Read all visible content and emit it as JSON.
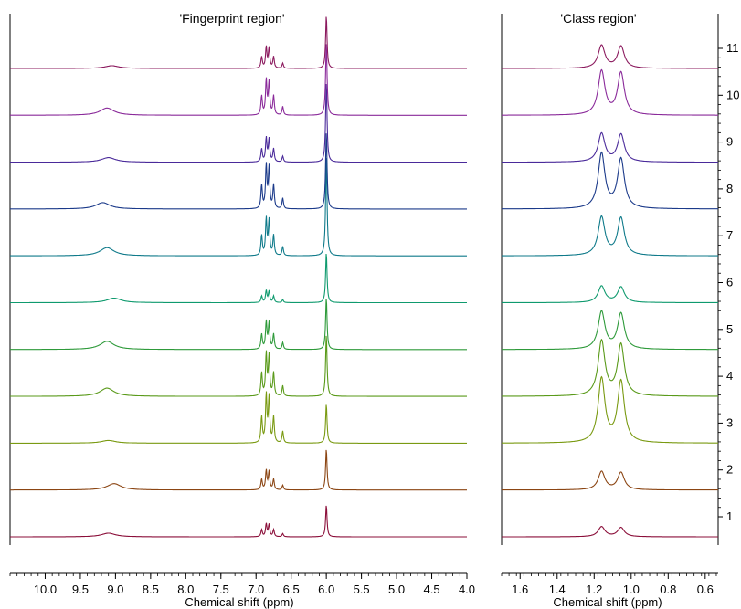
{
  "chart_data": [
    {
      "type": "line",
      "title": "'Fingerprint region'",
      "xlabel": "Chemical shift (ppm)",
      "xlim": [
        10.5,
        4.0
      ],
      "x_reversed": true,
      "xticks": [
        "10.0",
        "9.5",
        "9.0",
        "8.5",
        "8.0",
        "7.5",
        "7.0",
        "6.5",
        "6.0",
        "5.5",
        "5.0",
        "4.5",
        "4.0"
      ],
      "xtick_values": [
        10.0,
        9.5,
        9.0,
        8.5,
        8.0,
        7.5,
        7.0,
        6.5,
        6.0,
        5.5,
        5.0,
        4.5,
        4.0
      ],
      "peaks": [
        {
          "ppm": 9.1,
          "label": "broad hump"
        },
        {
          "ppm": 6.85,
          "label": "aromatic multiplet"
        },
        {
          "ppm": 6.0,
          "label": "sharp singlet"
        }
      ]
    },
    {
      "type": "line",
      "title": "'Class region'",
      "xlabel": "Chemical shift (ppm)",
      "xlim": [
        1.7,
        0.53
      ],
      "x_reversed": true,
      "xticks": [
        "1.6",
        "1.4",
        "1.2",
        "1.0",
        "0.8",
        "0.6"
      ],
      "xtick_values": [
        1.6,
        1.4,
        1.2,
        1.0,
        0.8,
        0.6
      ],
      "peaks": [
        {
          "ppm": 1.16,
          "label": "doublet left"
        },
        {
          "ppm": 1.055,
          "label": "doublet right"
        }
      ]
    }
  ],
  "series": [
    {
      "index": "1",
      "color": "#8b0f3a",
      "fp_humpx": 9.1,
      "fp_hump": 4,
      "fp_arom": 14,
      "fp_sing": 35,
      "class_a": 11,
      "class_b": 10
    },
    {
      "index": "2",
      "color": "#8b4513",
      "fp_humpx": 9.02,
      "fp_hump": 7,
      "fp_arom": 21,
      "fp_sing": 45,
      "class_a": 20,
      "class_b": 19
    },
    {
      "index": "3",
      "color": "#7a9a12",
      "fp_humpx": 9.1,
      "fp_hump": 3,
      "fp_arom": 52,
      "fp_sing": 43,
      "class_a": 70,
      "class_b": 67
    },
    {
      "index": "4",
      "color": "#5a9a1a",
      "fp_humpx": 9.12,
      "fp_hump": 9,
      "fp_arom": 46,
      "fp_sing": 68,
      "class_a": 60,
      "class_b": 56
    },
    {
      "index": "5",
      "color": "#2e9a3a",
      "fp_humpx": 9.12,
      "fp_hump": 9,
      "fp_arom": 30,
      "fp_sing": 57,
      "class_a": 41,
      "class_b": 39
    },
    {
      "index": "6",
      "color": "#0f9a6e",
      "fp_humpx": 9.02,
      "fp_hump": 5,
      "fp_arom": 13,
      "fp_sing": 55,
      "class_a": 18,
      "class_b": 17
    },
    {
      "index": "7",
      "color": "#0f7a8a",
      "fp_humpx": 9.12,
      "fp_hump": 9,
      "fp_arom": 40,
      "fp_sing": 110,
      "class_a": 42,
      "class_b": 41
    },
    {
      "index": "8",
      "color": "#1b3a8a",
      "fp_humpx": 9.18,
      "fp_hump": 7,
      "fp_arom": 47,
      "fp_sing": 85,
      "class_a": 60,
      "class_b": 54
    },
    {
      "index": "9",
      "color": "#4a2a9a",
      "fp_humpx": 9.1,
      "fp_hump": 5,
      "fp_arom": 26,
      "fp_sing": 88,
      "class_a": 31,
      "class_b": 30
    },
    {
      "index": "10",
      "color": "#8a2a9a",
      "fp_humpx": 9.12,
      "fp_hump": 8,
      "fp_arom": 38,
      "fp_sing": 80,
      "class_a": 48,
      "class_b": 46
    },
    {
      "index": "11",
      "color": "#8b1a5e",
      "fp_humpx": 9.05,
      "fp_hump": 3,
      "fp_arom": 23,
      "fp_sing": 58,
      "class_a": 25,
      "class_b": 24
    }
  ],
  "right_axis_ticks": [
    "1",
    "2",
    "3",
    "4",
    "5",
    "6",
    "7",
    "8",
    "9",
    "10",
    "11"
  ]
}
